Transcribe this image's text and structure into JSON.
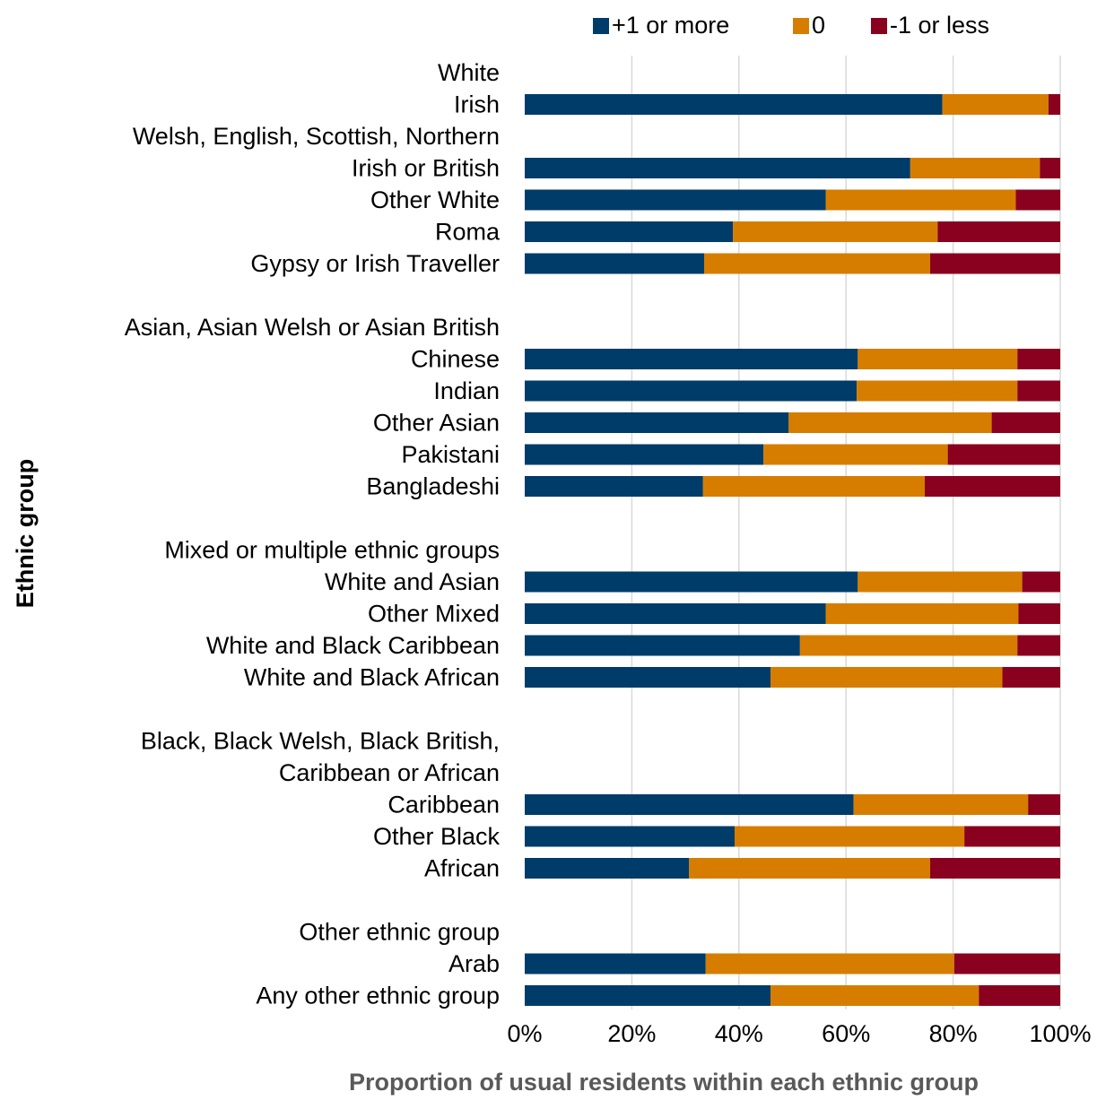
{
  "chart_data": {
    "type": "bar",
    "orientation": "horizontal",
    "stacked": true,
    "xlabel": "Proportion of usual residents within each ethnic group",
    "ylabel": "Ethnic group",
    "xlim": [
      0,
      100
    ],
    "x_ticks": [
      "0%",
      "20%",
      "40%",
      "60%",
      "80%",
      "100%"
    ],
    "grid": "vertical",
    "legend_position": "top",
    "series": [
      {
        "name": "+1 or more",
        "color": "#003c69"
      },
      {
        "name": "0",
        "color": "#d67d00"
      },
      {
        "name": "-1 or less",
        "color": "#8a001f"
      }
    ],
    "rows": [
      {
        "label": "White",
        "header": true
      },
      {
        "label": "Irish",
        "values": [
          78,
          19.8,
          2.2
        ]
      },
      {
        "label": "Welsh, English, Scottish, Northern",
        "header": true
      },
      {
        "label": "Irish or British",
        "values": [
          72,
          24.2,
          3.8
        ]
      },
      {
        "label": "Other White",
        "values": [
          56.2,
          35.5,
          8.3
        ]
      },
      {
        "label": "Roma",
        "values": [
          38.9,
          38.2,
          22.9
        ]
      },
      {
        "label": "Gypsy or Irish Traveller",
        "values": [
          33.5,
          42.2,
          24.3
        ]
      },
      {
        "label": "",
        "spacer": true
      },
      {
        "label": "Asian, Asian Welsh or Asian British",
        "header": true
      },
      {
        "label": "Chinese",
        "values": [
          62.2,
          29.8,
          8
        ]
      },
      {
        "label": "Indian",
        "values": [
          62,
          30,
          8
        ]
      },
      {
        "label": "Other Asian",
        "values": [
          49.3,
          37.9,
          12.8
        ]
      },
      {
        "label": "Pakistani",
        "values": [
          44.6,
          34.4,
          21
        ]
      },
      {
        "label": "Bangladeshi",
        "values": [
          33.3,
          41.4,
          25.3
        ]
      },
      {
        "label": "",
        "spacer": true
      },
      {
        "label": "Mixed or multiple ethnic groups",
        "header": true
      },
      {
        "label": "White and Asian",
        "values": [
          62.2,
          30.7,
          7.1
        ]
      },
      {
        "label": "Other Mixed",
        "values": [
          56.2,
          36,
          7.8
        ]
      },
      {
        "label": "White and Black Caribbean",
        "values": [
          51.4,
          40.6,
          8
        ]
      },
      {
        "label": "White and Black African",
        "values": [
          45.9,
          43.3,
          10.8
        ]
      },
      {
        "label": "",
        "spacer": true
      },
      {
        "label": "Black, Black Welsh, Black British,",
        "header": true
      },
      {
        "label": "Caribbean or African",
        "header": true
      },
      {
        "label": "Caribbean",
        "values": [
          61.4,
          32.6,
          6
        ]
      },
      {
        "label": "Other Black",
        "values": [
          39.2,
          42.9,
          17.9
        ]
      },
      {
        "label": "African",
        "values": [
          30.7,
          45,
          24.3
        ]
      },
      {
        "label": "",
        "spacer": true
      },
      {
        "label": "Other ethnic group",
        "header": true
      },
      {
        "label": "Arab",
        "values": [
          33.8,
          46.4,
          19.8
        ]
      },
      {
        "label": "Any other ethnic group",
        "values": [
          45.9,
          38.9,
          15.2
        ]
      }
    ]
  }
}
